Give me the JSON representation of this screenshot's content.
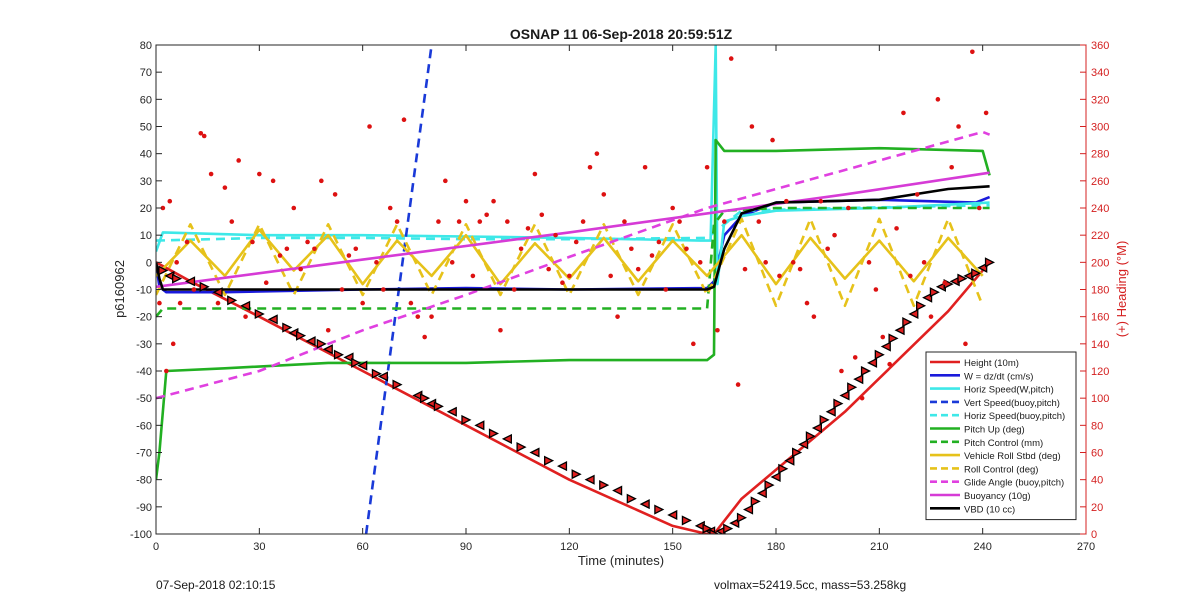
{
  "chart_data": {
    "type": "line",
    "title": "OSNAP 11 06-Sep-2018 20:59:51Z",
    "xlabel": "Time (minutes)",
    "ylabel": "p6160962",
    "ylabel_right": "(+) Heading (°M)",
    "xlim": [
      0,
      270
    ],
    "ylim": [
      -100,
      80
    ],
    "ylim_right": [
      0,
      360
    ],
    "x_ticks": [
      0,
      30,
      60,
      90,
      120,
      150,
      180,
      210,
      240,
      270
    ],
    "y_ticks": [
      -100,
      -90,
      -80,
      -70,
      -60,
      -50,
      -40,
      -30,
      -20,
      -10,
      0,
      10,
      20,
      30,
      40,
      50,
      60,
      70,
      80
    ],
    "y_right_ticks": [
      0,
      20,
      40,
      60,
      80,
      100,
      120,
      140,
      160,
      180,
      200,
      220,
      240,
      260,
      280,
      300,
      320,
      340,
      360
    ],
    "grid": false,
    "legend_position": "bottom-right",
    "colors": {
      "height": "#e02020",
      "w": "#1a1adb",
      "horiz_speed": "#3ee8e8",
      "vert_speed": "#1a3ad8",
      "pitch": "#22b022",
      "roll": "#e6c21a",
      "glide": "#e040e0",
      "buoyancy": "#d63bd6",
      "vbd": "#000000",
      "heading": "#dd1111",
      "right_axis": "#d42020"
    },
    "series": [
      {
        "name": "Height (10m)",
        "style": "solid",
        "color": "#e02020",
        "x": [
          0,
          10,
          30,
          60,
          90,
          120,
          150,
          160,
          162,
          170,
          200,
          230,
          242
        ],
        "y": [
          0,
          -7,
          -20,
          -40,
          -60,
          -80,
          -97,
          -100,
          -100,
          -87,
          -55,
          -18,
          0
        ]
      },
      {
        "name": "W = dz/dt (cm/s)",
        "style": "solid",
        "color": "#1a1adb",
        "x": [
          0,
          1,
          3,
          20,
          60,
          90,
          120,
          160,
          162,
          165,
          170,
          180,
          210,
          238,
          242
        ],
        "y": [
          0,
          -9,
          -11,
          -11,
          -10,
          -9.5,
          -10,
          -9.5,
          -7,
          10,
          17,
          22,
          23,
          22,
          24
        ]
      },
      {
        "name": "Horiz Speed(W,pitch)",
        "style": "solid",
        "color": "#3ee8e8",
        "x": [
          0,
          2,
          30,
          60,
          90,
          120,
          158,
          161,
          162.5,
          163,
          165,
          170,
          180,
          210,
          242
        ],
        "y": [
          4,
          11,
          10,
          10,
          9.5,
          9,
          8,
          8,
          80,
          -8,
          15,
          17,
          19,
          20,
          22
        ]
      },
      {
        "name": "Vert Speed(buoy,pitch)",
        "style": "dashed",
        "color": "#1a3ad8",
        "x": [
          61,
          80
        ],
        "y": [
          -100,
          80
        ]
      },
      {
        "name": "Horiz Speed(buoy,pitch)",
        "style": "dashed",
        "color": "#3ee8e8",
        "x": [
          0,
          30,
          60,
          90,
          120,
          160,
          170,
          200,
          242
        ],
        "y": [
          8,
          9,
          9,
          8.5,
          8.5,
          9,
          19,
          20,
          21
        ]
      },
      {
        "name": "Pitch Up (deg)",
        "style": "solid",
        "color": "#22b022",
        "x": [
          0,
          1,
          3,
          20,
          50,
          90,
          120,
          150,
          160,
          162,
          162.5,
          165,
          180,
          210,
          240,
          242
        ],
        "y": [
          -80,
          -70,
          -40,
          -39,
          -37,
          -37,
          -36,
          -36,
          -36,
          -34,
          45,
          41,
          41,
          42,
          41,
          32
        ]
      },
      {
        "name": "Pitch Control (mm)",
        "style": "dashed",
        "color": "#22b022",
        "x": [
          0,
          2,
          60,
          120,
          160,
          162,
          165,
          180,
          242
        ],
        "y": [
          -20,
          -17,
          -17,
          -17,
          -17,
          14,
          19,
          20,
          20
        ]
      },
      {
        "name": "Vehicle Roll Stbd (deg)",
        "style": "solid",
        "color": "#e6c21a",
        "x": [
          0,
          10,
          20,
          30,
          40,
          50,
          60,
          70,
          80,
          90,
          100,
          110,
          120,
          130,
          140,
          150,
          160,
          170,
          180,
          190,
          200,
          210,
          220,
          230,
          240
        ],
        "y": [
          -5,
          8,
          -5,
          12,
          -3,
          10,
          -8,
          8,
          -5,
          10,
          -8,
          7,
          -6,
          9,
          -7,
          8,
          -5,
          10,
          -8,
          9,
          -6,
          8,
          -7,
          9,
          -5
        ]
      },
      {
        "name": "Roll Control (deg)",
        "style": "dashed",
        "color": "#e6c21a",
        "x": [
          0,
          10,
          20,
          30,
          40,
          50,
          60,
          70,
          80,
          90,
          100,
          110,
          120,
          130,
          140,
          150,
          160,
          170,
          180,
          190,
          200,
          210,
          220,
          230,
          240
        ],
        "y": [
          -12,
          14,
          -12,
          14,
          -12,
          14,
          -12,
          14,
          -12,
          14,
          -12,
          14,
          -12,
          14,
          -12,
          14,
          -12,
          16,
          -16,
          16,
          -16,
          16,
          -16,
          16,
          -16
        ]
      },
      {
        "name": "Glide Angle (buoy,pitch)",
        "style": "dashed",
        "color": "#e040e0",
        "x": [
          0,
          30,
          60,
          90,
          120,
          160,
          200,
          240,
          242
        ],
        "y": [
          -50,
          -40,
          -25,
          -12,
          2,
          20,
          34,
          48,
          47
        ]
      },
      {
        "name": "Buoyancy (10g)",
        "style": "solid",
        "color": "#d63bd6",
        "x": [
          0,
          60,
          120,
          160,
          200,
          242
        ],
        "y": [
          -9,
          1,
          11,
          18,
          25,
          33
        ]
      },
      {
        "name": "VBD (10 cc)",
        "style": "solid",
        "color": "#000000",
        "x": [
          0,
          1,
          2,
          40,
          80,
          120,
          160,
          162,
          165,
          170,
          180,
          210,
          230,
          242
        ],
        "y": [
          0,
          -6,
          -10,
          -10,
          -10,
          -10,
          -10,
          -9,
          5,
          18,
          22,
          23,
          27,
          28
        ]
      }
    ],
    "marker_series": [
      {
        "color": "#e02020",
        "marker": "triangle",
        "x": [
          2,
          4,
          6,
          10,
          14,
          18,
          22,
          26,
          30,
          34,
          38,
          40,
          42,
          45,
          48,
          50,
          53,
          56,
          58,
          60,
          64,
          66,
          70,
          76,
          78,
          80,
          82,
          86,
          90,
          94,
          98,
          102,
          106,
          110,
          114,
          118,
          122,
          126,
          130,
          134,
          138,
          142,
          146,
          150,
          154,
          158,
          160,
          161,
          162,
          164,
          166,
          168,
          170,
          172,
          174,
          176,
          178,
          180,
          182,
          184,
          186,
          188,
          190,
          192,
          194,
          196,
          198,
          200,
          202,
          204,
          206,
          208,
          210,
          212,
          214,
          216,
          218,
          220,
          222,
          224,
          226,
          228,
          230,
          232,
          234,
          236,
          238,
          240,
          242
        ],
        "y": [
          -3,
          -5,
          -6,
          -7,
          -9,
          -11,
          -14,
          -16,
          -19,
          -21,
          -24,
          -26,
          -27,
          -29,
          -30,
          -32,
          -34,
          -35,
          -37,
          -38,
          -41,
          -42,
          -45,
          -49,
          -50,
          -52,
          -53,
          -55,
          -58,
          -60,
          -63,
          -65,
          -68,
          -70,
          -73,
          -75,
          -78,
          -80,
          -82,
          -84,
          -87,
          -89,
          -91,
          -93,
          -95,
          -97,
          -98,
          -99,
          -100,
          -99,
          -98,
          -96,
          -94,
          -91,
          -88,
          -85,
          -82,
          -79,
          -76,
          -73,
          -70,
          -67,
          -64,
          -61,
          -58,
          -55,
          -52,
          -49,
          -46,
          -43,
          -40,
          -37,
          -34,
          -31,
          -28,
          -25,
          -22,
          -19,
          -16,
          -13,
          -11,
          -9,
          -8,
          -7,
          -6,
          -5,
          -4,
          -2,
          0
        ]
      }
    ],
    "heading_scatter": {
      "name": "(+) Heading (°M)",
      "color": "#dd1111",
      "axis": "right",
      "x": [
        1,
        2,
        3,
        4,
        5,
        6,
        7,
        9,
        11,
        13,
        14,
        16,
        18,
        20,
        22,
        24,
        26,
        28,
        30,
        32,
        34,
        36,
        38,
        40,
        42,
        44,
        46,
        48,
        50,
        52,
        54,
        56,
        58,
        60,
        62,
        64,
        66,
        68,
        70,
        72,
        74,
        76,
        78,
        80,
        82,
        84,
        86,
        88,
        90,
        92,
        94,
        96,
        98,
        100,
        102,
        104,
        106,
        108,
        110,
        112,
        114,
        116,
        118,
        120,
        122,
        124,
        126,
        128,
        130,
        132,
        134,
        136,
        138,
        140,
        142,
        144,
        146,
        148,
        150,
        152,
        154,
        156,
        158,
        160,
        163,
        165,
        167,
        169,
        171,
        173,
        175,
        177,
        179,
        181,
        183,
        185,
        187,
        189,
        191,
        193,
        195,
        197,
        199,
        201,
        203,
        205,
        207,
        209,
        211,
        213,
        215,
        217,
        219,
        221,
        223,
        225,
        227,
        229,
        231,
        233,
        235,
        237,
        239,
        241
      ],
      "y": [
        170,
        240,
        120,
        245,
        140,
        200,
        170,
        215,
        180,
        295,
        293,
        265,
        170,
        255,
        230,
        275,
        160,
        215,
        265,
        185,
        260,
        205,
        210,
        240,
        195,
        215,
        210,
        260,
        150,
        250,
        180,
        205,
        210,
        170,
        300,
        200,
        180,
        240,
        230,
        305,
        170,
        160,
        145,
        160,
        230,
        260,
        200,
        230,
        245,
        190,
        230,
        235,
        245,
        150,
        230,
        180,
        210,
        225,
        265,
        235,
        195,
        220,
        185,
        190,
        215,
        230,
        270,
        280,
        250,
        190,
        160,
        230,
        210,
        195,
        270,
        205,
        215,
        180,
        240,
        230,
        210,
        140,
        200,
        270,
        150,
        230,
        350,
        110,
        195,
        300,
        230,
        200,
        290,
        190,
        245,
        200,
        195,
        170,
        160,
        245,
        210,
        220,
        120,
        240,
        130,
        100,
        200,
        180,
        145,
        125,
        225,
        310,
        190,
        250,
        200,
        160,
        320,
        185,
        270,
        300,
        140,
        355,
        240,
        310
      ]
    },
    "legend": [
      {
        "label": "Height (10m)",
        "color": "#e02020",
        "style": "solid"
      },
      {
        "label": "W = dz/dt (cm/s)",
        "color": "#1a1adb",
        "style": "solid"
      },
      {
        "label": "Horiz Speed(W,pitch)",
        "color": "#3ee8e8",
        "style": "solid"
      },
      {
        "label": "Vert Speed(buoy,pitch)",
        "color": "#1a3ad8",
        "style": "dashed"
      },
      {
        "label": "Horiz Speed(buoy,pitch)",
        "color": "#3ee8e8",
        "style": "dashed"
      },
      {
        "label": "Pitch Up (deg)",
        "color": "#22b022",
        "style": "solid"
      },
      {
        "label": "Pitch Control (mm)",
        "color": "#22b022",
        "style": "dashed"
      },
      {
        "label": "Vehicle Roll Stbd (deg)",
        "color": "#e6c21a",
        "style": "solid"
      },
      {
        "label": "Roll Control (deg)",
        "color": "#e6c21a",
        "style": "dashed"
      },
      {
        "label": "Glide Angle (buoy,pitch)",
        "color": "#e040e0",
        "style": "dashed"
      },
      {
        "label": "Buoyancy (10g)",
        "color": "#d63bd6",
        "style": "solid"
      },
      {
        "label": "VBD (10 cc)",
        "color": "#000000",
        "style": "solid"
      }
    ]
  },
  "footer": {
    "left": "07-Sep-2018 02:10:15",
    "right": "volmax=52419.5cc, mass=53.258kg"
  }
}
